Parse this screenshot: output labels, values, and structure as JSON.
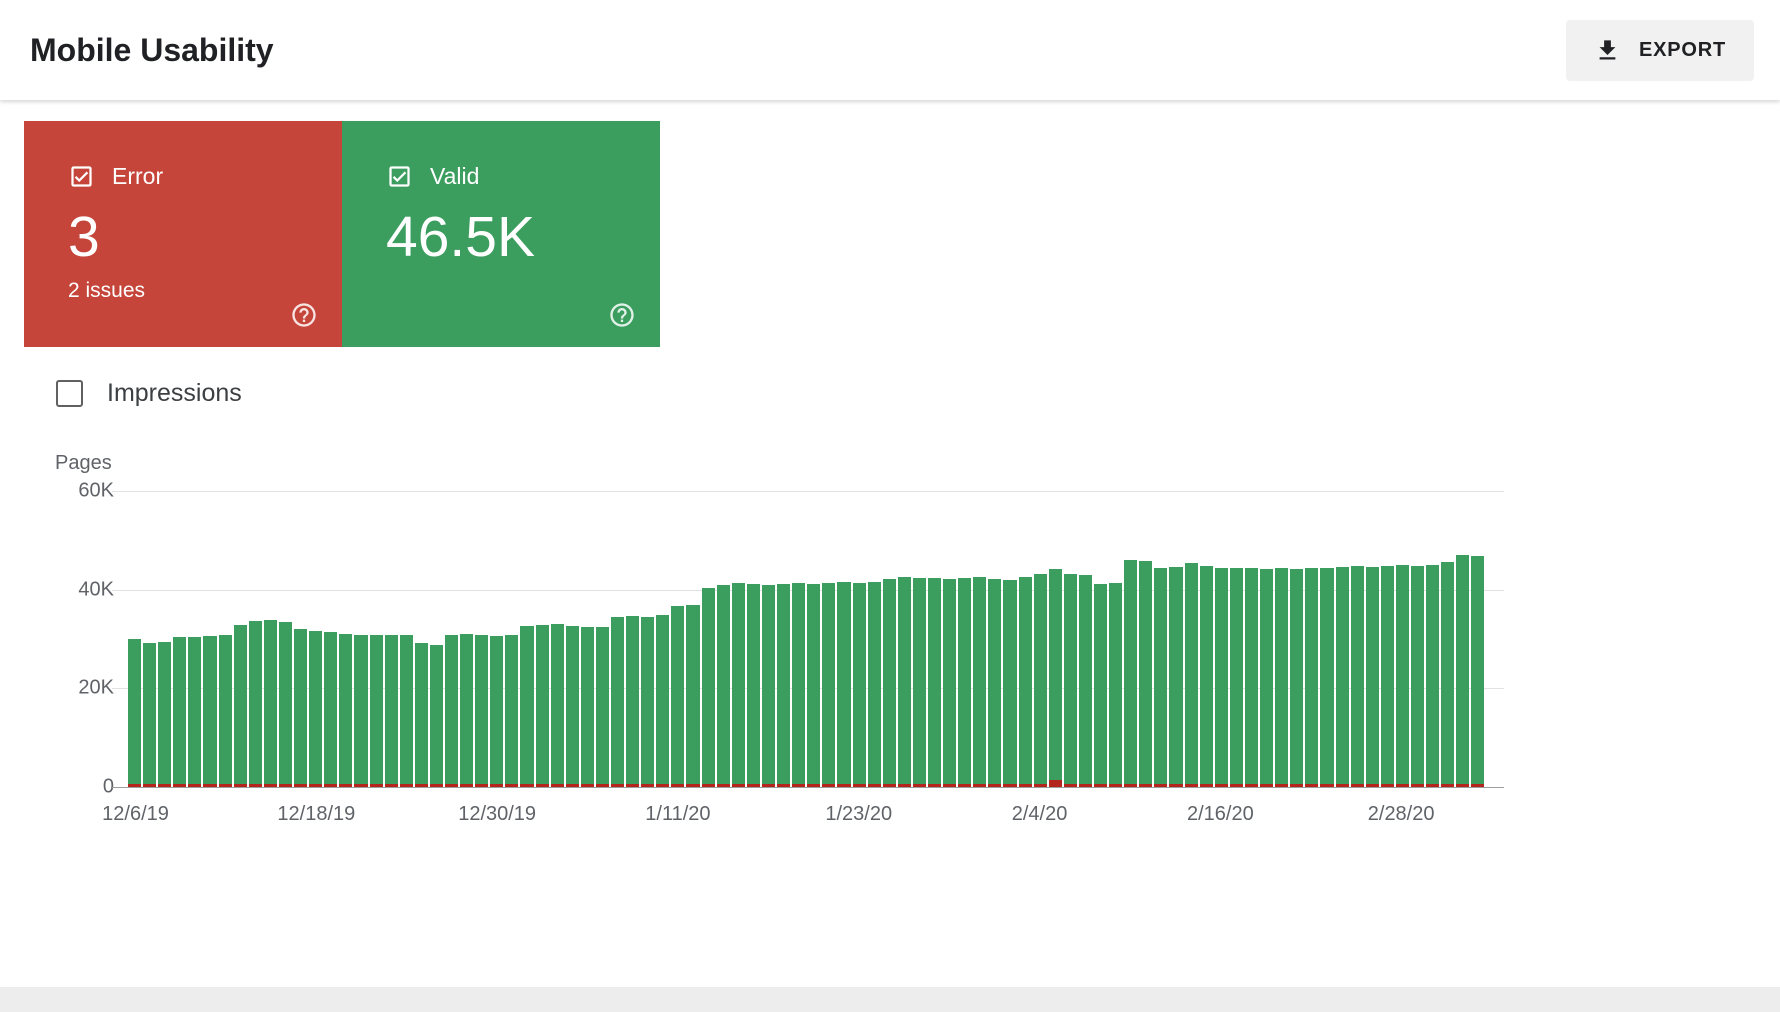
{
  "header": {
    "title": "Mobile Usability",
    "export_label": "EXPORT"
  },
  "summary_cards": {
    "error": {
      "label": "Error",
      "value": "3",
      "sub": "2 issues",
      "color": "#c5453a",
      "checked": true
    },
    "valid": {
      "label": "Valid",
      "value": "46.5K",
      "color": "#3b9e5f",
      "checked": true
    }
  },
  "impressions_toggle": {
    "label": "Impressions",
    "checked": false
  },
  "chart_data": {
    "type": "bar",
    "title": "",
    "ylabel": "Pages",
    "y_tick_labels": [
      "60K",
      "40K",
      "20K",
      "0"
    ],
    "ylim_k": [
      0,
      60
    ],
    "num_bars": 90,
    "x_range": "12/6/19 to 3/4/20, one bar per day",
    "x_tick_labels": [
      "12/6/19",
      "12/18/19",
      "12/30/19",
      "1/11/20",
      "1/23/20",
      "2/4/20",
      "2/16/20",
      "2/28/20"
    ],
    "x_tick_indices": [
      0,
      12,
      24,
      36,
      48,
      60,
      72,
      84
    ],
    "legend_position": "none",
    "grid": true,
    "series": [
      {
        "name": "Valid",
        "color": "#3b9e5f",
        "unit": "thousand pages",
        "values": [
          29.5,
          28.5,
          28.8,
          29.8,
          29.8,
          30.0,
          30.2,
          32.3,
          33.0,
          33.2,
          32.8,
          31.5,
          31.0,
          30.8,
          30.5,
          30.3,
          30.3,
          30.2,
          30.3,
          28.5,
          28.2,
          30.3,
          30.5,
          30.2,
          30.0,
          30.2,
          32.0,
          32.3,
          32.5,
          32.0,
          31.8,
          31.8,
          33.8,
          34.0,
          33.8,
          34.3,
          36.0,
          36.2,
          39.8,
          40.3,
          40.8,
          40.5,
          40.3,
          40.5,
          40.8,
          40.5,
          40.8,
          41.0,
          40.8,
          41.0,
          41.5,
          42.0,
          41.8,
          41.8,
          41.5,
          41.8,
          42.0,
          41.5,
          41.3,
          42.0,
          42.5,
          42.8,
          42.5,
          42.3,
          40.5,
          40.8,
          45.5,
          45.3,
          43.8,
          44.0,
          44.8,
          44.3,
          43.8,
          43.8,
          43.8,
          43.5,
          43.8,
          43.5,
          43.8,
          43.8,
          44.0,
          44.3,
          44.0,
          44.3,
          44.5,
          44.3,
          44.5,
          45.0,
          46.5,
          46.3
        ]
      },
      {
        "name": "Error",
        "color": "#b3261e",
        "unit": "thousand pages",
        "note": "near-zero thin strip along the baseline (3 error pages)",
        "baseline_value": 0.6,
        "spikes": [
          {
            "index": 61,
            "value": 1.4
          }
        ]
      }
    ]
  }
}
